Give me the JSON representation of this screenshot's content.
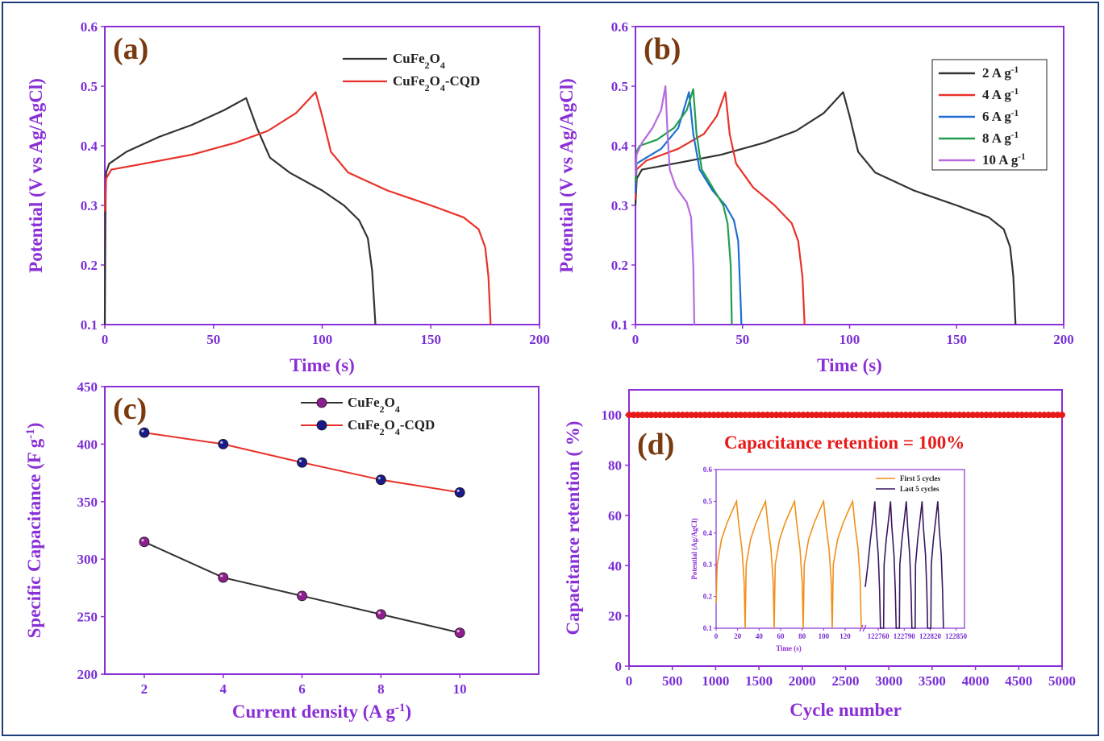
{
  "colors": {
    "axis": "#8a2fd6",
    "black": "#333333",
    "red": "#e8322a",
    "blue": "#1f6fd1",
    "green": "#1f9e4f",
    "violet": "#b66be0",
    "orange": "#f0901a",
    "darkpurple": "#3a1660",
    "marker_red": "#e81919",
    "marker_navy": "#1a1a8a",
    "marker_purple": "#8e1f8e"
  },
  "chart_data": [
    {
      "id": "a",
      "panel_label": "(a)",
      "type": "line",
      "xlabel": "Time (s)",
      "ylabel": "Potential  (V vs Ag/AgCl)",
      "xlim": [
        0,
        200
      ],
      "ylim": [
        0.1,
        0.6
      ],
      "xticks": [
        "0",
        "50",
        "100",
        "150",
        "200"
      ],
      "yticks": [
        "0.1",
        "0.2",
        "0.3",
        "0.4",
        "0.5",
        "0.6"
      ],
      "legend": [
        {
          "label": "CuFe",
          "sub": "2",
          "label2": "O",
          "sub2": "4",
          "label3": "",
          "color": "black"
        },
        {
          "label": "CuFe",
          "sub": "2",
          "label2": "O",
          "sub2": "4",
          "label3": "-CQD",
          "color": "red"
        }
      ],
      "series": [
        {
          "name": "CuFe2O4",
          "color": "black",
          "points": [
            [
              0,
              0.1
            ],
            [
              0.3,
              0.3
            ],
            [
              0.6,
              0.355
            ],
            [
              2,
              0.37
            ],
            [
              10,
              0.39
            ],
            [
              25,
              0.415
            ],
            [
              40,
              0.435
            ],
            [
              55,
              0.46
            ],
            [
              65,
              0.48
            ],
            [
              70,
              0.43
            ],
            [
              76,
              0.38
            ],
            [
              85,
              0.355
            ],
            [
              100,
              0.325
            ],
            [
              110,
              0.3
            ],
            [
              117,
              0.275
            ],
            [
              121,
              0.245
            ],
            [
              123,
              0.19
            ],
            [
              124,
              0.13
            ],
            [
              124.5,
              0.1
            ]
          ]
        },
        {
          "name": "CuFe2O4-CQD",
          "color": "red",
          "points": [
            [
              0,
              0.29
            ],
            [
              0.6,
              0.345
            ],
            [
              3,
              0.36
            ],
            [
              15,
              0.368
            ],
            [
              40,
              0.385
            ],
            [
              60,
              0.405
            ],
            [
              75,
              0.425
            ],
            [
              88,
              0.455
            ],
            [
              97,
              0.49
            ],
            [
              100,
              0.45
            ],
            [
              104,
              0.39
            ],
            [
              112,
              0.355
            ],
            [
              130,
              0.325
            ],
            [
              150,
              0.3
            ],
            [
              165,
              0.28
            ],
            [
              172,
              0.26
            ],
            [
              175,
              0.23
            ],
            [
              176.5,
              0.18
            ],
            [
              177.5,
              0.1
            ]
          ]
        }
      ]
    },
    {
      "id": "b",
      "panel_label": "(b)",
      "type": "line",
      "xlabel": "Time (s)",
      "ylabel": "Potential  (V vs Ag/AgCl)",
      "xlim": [
        0,
        200
      ],
      "ylim": [
        0.1,
        0.6
      ],
      "xticks": [
        "0",
        "50",
        "100",
        "150",
        "200"
      ],
      "yticks": [
        "0.1",
        "0.2",
        "0.3",
        "0.4",
        "0.5",
        "0.6"
      ],
      "legend": [
        {
          "label": "2 A g",
          "sup": "-1",
          "color": "black"
        },
        {
          "label": "4 A g",
          "sup": "-1",
          "color": "red"
        },
        {
          "label": "6 A g",
          "sup": "-1",
          "color": "blue"
        },
        {
          "label": "8 A g",
          "sup": "-1",
          "color": "green"
        },
        {
          "label": "10 A g",
          "sup": "-1",
          "color": "violet"
        }
      ],
      "series": [
        {
          "name": "2 A g-1",
          "color": "black",
          "points": [
            [
              0,
              0.3
            ],
            [
              0.6,
              0.345
            ],
            [
              3,
              0.36
            ],
            [
              15,
              0.368
            ],
            [
              40,
              0.385
            ],
            [
              60,
              0.405
            ],
            [
              75,
              0.425
            ],
            [
              88,
              0.455
            ],
            [
              97,
              0.49
            ],
            [
              100,
              0.45
            ],
            [
              104,
              0.39
            ],
            [
              112,
              0.355
            ],
            [
              130,
              0.325
            ],
            [
              150,
              0.3
            ],
            [
              165,
              0.28
            ],
            [
              172,
              0.26
            ],
            [
              175,
              0.23
            ],
            [
              176.5,
              0.18
            ],
            [
              177.5,
              0.1
            ]
          ]
        },
        {
          "name": "4 A g-1",
          "color": "red",
          "points": [
            [
              0,
              0.31
            ],
            [
              0.5,
              0.36
            ],
            [
              5,
              0.375
            ],
            [
              20,
              0.395
            ],
            [
              32,
              0.42
            ],
            [
              38,
              0.45
            ],
            [
              42,
              0.49
            ],
            [
              44,
              0.42
            ],
            [
              47,
              0.37
            ],
            [
              55,
              0.33
            ],
            [
              65,
              0.3
            ],
            [
              73,
              0.27
            ],
            [
              76,
              0.24
            ],
            [
              78,
              0.18
            ],
            [
              79,
              0.1
            ]
          ]
        },
        {
          "name": "6 A g-1",
          "color": "blue",
          "points": [
            [
              0,
              0.32
            ],
            [
              0.5,
              0.37
            ],
            [
              5,
              0.38
            ],
            [
              12,
              0.395
            ],
            [
              20,
              0.43
            ],
            [
              25,
              0.49
            ],
            [
              27,
              0.42
            ],
            [
              30,
              0.36
            ],
            [
              36,
              0.325
            ],
            [
              42,
              0.3
            ],
            [
              46,
              0.275
            ],
            [
              48,
              0.24
            ],
            [
              49,
              0.15
            ],
            [
              49.5,
              0.1
            ]
          ]
        },
        {
          "name": "8 A g-1",
          "color": "green",
          "points": [
            [
              0,
              0.34
            ],
            [
              0.5,
              0.39
            ],
            [
              2,
              0.4
            ],
            [
              10,
              0.41
            ],
            [
              18,
              0.43
            ],
            [
              24,
              0.46
            ],
            [
              27,
              0.495
            ],
            [
              28.5,
              0.42
            ],
            [
              31,
              0.36
            ],
            [
              36,
              0.33
            ],
            [
              41,
              0.3
            ],
            [
              43,
              0.27
            ],
            [
              44.5,
              0.2
            ],
            [
              45,
              0.1
            ]
          ]
        },
        {
          "name": "10 A g-1",
          "color": "violet",
          "points": [
            [
              0,
              0.35
            ],
            [
              0.5,
              0.385
            ],
            [
              3,
              0.405
            ],
            [
              8,
              0.43
            ],
            [
              12,
              0.46
            ],
            [
              14,
              0.5
            ],
            [
              15,
              0.42
            ],
            [
              16,
              0.36
            ],
            [
              19,
              0.33
            ],
            [
              24,
              0.305
            ],
            [
              26,
              0.28
            ],
            [
              27,
              0.2
            ],
            [
              27.5,
              0.1
            ]
          ]
        }
      ]
    },
    {
      "id": "c",
      "panel_label": "(c)",
      "type": "line",
      "xlabel": "Current density (A g",
      "xlabel_sup": "-1",
      "xlabel_end": ")",
      "ylabel": "Specific Capacitance (F g",
      "ylabel_sup": "-1",
      "ylabel_end": ")",
      "xlim": [
        1,
        12
      ],
      "ylim": [
        200,
        450
      ],
      "xticks": [
        "2",
        "4",
        "6",
        "8",
        "10"
      ],
      "yticks": [
        "200",
        "250",
        "300",
        "350",
        "400",
        "450"
      ],
      "legend": [
        {
          "label": "CuFe",
          "sub": "2",
          "label2": "O",
          "sub2": "4",
          "label3": "",
          "color": "black",
          "marker": "marker_purple"
        },
        {
          "label": "CuFe",
          "sub": "2",
          "label2": "O",
          "sub2": "4",
          "label3": "-CQD",
          "color": "red",
          "marker": "marker_navy"
        }
      ],
      "series": [
        {
          "name": "CuFe2O4",
          "color": "black",
          "marker": "marker_purple",
          "x": [
            2,
            4,
            6,
            8,
            10
          ],
          "values": [
            315,
            284,
            268,
            252,
            236
          ]
        },
        {
          "name": "CuFe2O4-CQD",
          "color": "red",
          "marker": "marker_navy",
          "x": [
            2,
            4,
            6,
            8,
            10
          ],
          "values": [
            410,
            400,
            384,
            369,
            358
          ]
        }
      ]
    },
    {
      "id": "d",
      "panel_label": "(d)",
      "type": "scatter",
      "xlabel": "Cycle number",
      "ylabel": "Capacitance  retention  ( %)",
      "xlim": [
        0,
        5000
      ],
      "ylim": [
        0,
        110
      ],
      "xticks": [
        "0",
        "500",
        "1000",
        "1500",
        "2000",
        "2500",
        "3000",
        "3500",
        "4000",
        "4500",
        "5000"
      ],
      "yticks": [
        "0",
        "20",
        "40",
        "60",
        "80",
        "100"
      ],
      "annotation": "Capacitance retention = 100%",
      "series": [
        {
          "name": "retention",
          "color": "marker_red",
          "value": 100,
          "count": 98
        }
      ],
      "inset": {
        "type": "line",
        "xlabel": "Time (s)",
        "ylabel": "Potential (Ag/AgCl)",
        "ylim": [
          0.1,
          0.6
        ],
        "yticks": [
          "0.1",
          "0.2",
          "0.3",
          "0.4",
          "0.5",
          "0.6"
        ],
        "xticks_left": [
          "0",
          "20",
          "40",
          "60",
          "80",
          "100",
          "120"
        ],
        "xticks_right": [
          "122760",
          "122790",
          "122820",
          "122850"
        ],
        "legend": [
          {
            "label": "First 5 cycles",
            "color": "orange"
          },
          {
            "label": "Last 5 cycles",
            "color": "darkpurple"
          }
        ],
        "first_cycles_period_s": 27,
        "last_cycles_period_s": 13
      }
    }
  ]
}
